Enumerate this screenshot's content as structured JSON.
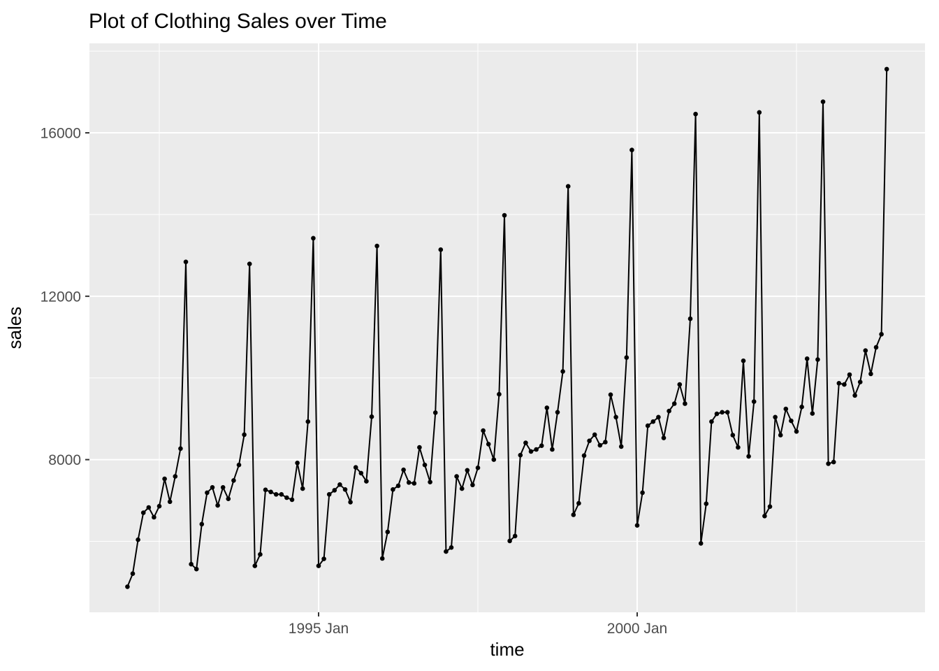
{
  "chart_data": {
    "type": "line",
    "title": "Plot of Clothing Sales over Time",
    "xlabel": "time",
    "ylabel": "sales",
    "series_start": "1992-01",
    "series_end": "2003-12",
    "frequency": "monthly",
    "legend": "none",
    "grid": "on",
    "marker": "point",
    "ylim_panel": [
      4260,
      18190
    ],
    "y_axis": {
      "major_ticks": [
        {
          "label": "8000",
          "value": 8000
        },
        {
          "label": "12000",
          "value": 12000
        },
        {
          "label": "16000",
          "value": 16000
        }
      ],
      "minor_values": [
        6000,
        10000,
        14000,
        18000
      ]
    },
    "x_axis": {
      "major_ticks": [
        {
          "label": "1995 Jan",
          "month_index": 36
        },
        {
          "label": "2000 Jan",
          "month_index": 96
        }
      ],
      "minor_month_indices": [
        6,
        66,
        126
      ]
    },
    "series": [
      {
        "name": "sales",
        "values": [
          4890,
          5210,
          6040,
          6700,
          6830,
          6590,
          6860,
          7530,
          6970,
          7590,
          8270,
          12840,
          5440,
          5320,
          6420,
          7190,
          7320,
          6880,
          7320,
          7040,
          7490,
          7870,
          8610,
          12790,
          5400,
          5680,
          7260,
          7210,
          7150,
          7150,
          7070,
          7020,
          7920,
          7290,
          8930,
          13420,
          5400,
          5570,
          7150,
          7250,
          7390,
          7270,
          6960,
          7810,
          7670,
          7470,
          9050,
          13230,
          5580,
          6230,
          7270,
          7360,
          7750,
          7440,
          7420,
          8300,
          7870,
          7450,
          9150,
          13140,
          5750,
          5850,
          7590,
          7290,
          7740,
          7380,
          7800,
          8710,
          8380,
          8000,
          9600,
          13980,
          6010,
          6130,
          8110,
          8410,
          8200,
          8250,
          8340,
          9270,
          8250,
          9160,
          10160,
          14690,
          6650,
          6930,
          8100,
          8460,
          8610,
          8350,
          8430,
          9590,
          9040,
          8320,
          10500,
          15580,
          6390,
          7190,
          8830,
          8930,
          9040,
          8530,
          9190,
          9370,
          9840,
          9370,
          11450,
          16460,
          5950,
          6920,
          8930,
          9120,
          9160,
          9160,
          8600,
          8300,
          10420,
          8080,
          9420,
          16500,
          6620,
          6850,
          9040,
          8600,
          9240,
          8950,
          8690,
          9290,
          10470,
          9130,
          10450,
          16760,
          7900,
          7940,
          9870,
          9840,
          10080,
          9570,
          9900,
          10670,
          10100,
          10750,
          11070,
          17560
        ]
      }
    ],
    "colors": {
      "background": "#FFFFFF",
      "panel": "#EBEBEB",
      "gridline": "#FFFFFF",
      "line": "#000000",
      "point": "#000000",
      "tick_mark": "#333333",
      "tick_label": "#4D4D4D",
      "title": "#000000"
    }
  }
}
